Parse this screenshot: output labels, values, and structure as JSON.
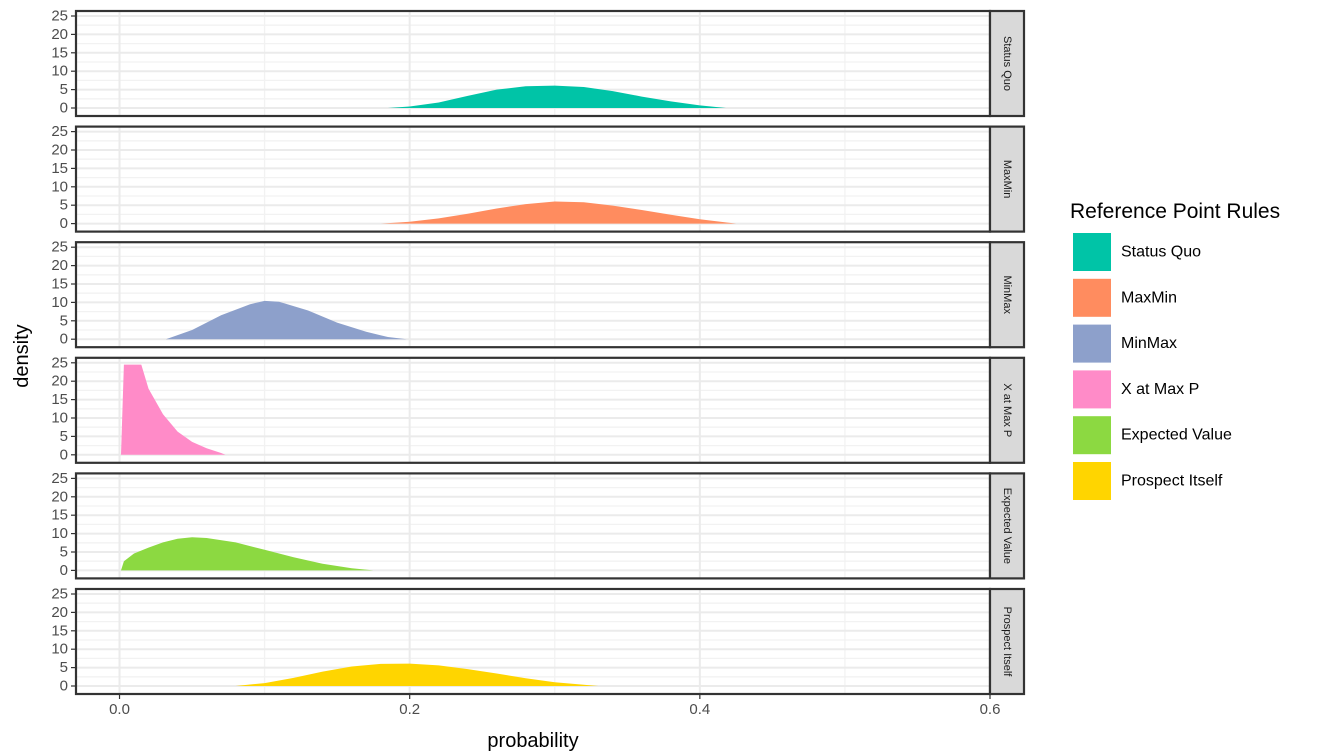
{
  "chart_data": {
    "type": "area",
    "xlabel": "probability",
    "ylabel": "density",
    "xlim": [
      -0.03,
      0.6
    ],
    "ylim": [
      0,
      25
    ],
    "x_ticks": [
      "0.0",
      "0.2",
      "0.4",
      "0.6"
    ],
    "x_tick_values": [
      0.0,
      0.2,
      0.4,
      0.6
    ],
    "y_ticks": [
      "0",
      "5",
      "10",
      "15",
      "20",
      "25"
    ],
    "y_tick_values": [
      0,
      5,
      10,
      15,
      20,
      25
    ],
    "grid": true,
    "legend": {
      "title": "Reference Point Rules",
      "position": "right"
    },
    "series": [
      {
        "name": "Status Quo",
        "color": "#00C4A7",
        "x": [
          0.185,
          0.2,
          0.22,
          0.24,
          0.26,
          0.28,
          0.3,
          0.32,
          0.34,
          0.36,
          0.38,
          0.4,
          0.418
        ],
        "y": [
          0,
          0.4,
          1.5,
          3.3,
          5.0,
          5.9,
          6.1,
          5.7,
          4.6,
          3.1,
          1.8,
          0.7,
          0
        ]
      },
      {
        "name": "MaxMin",
        "color": "#FF8C5F",
        "x": [
          0.18,
          0.2,
          0.22,
          0.24,
          0.26,
          0.28,
          0.3,
          0.32,
          0.34,
          0.36,
          0.38,
          0.4,
          0.425
        ],
        "y": [
          0,
          0.5,
          1.4,
          2.7,
          4.1,
          5.3,
          6.0,
          5.8,
          4.9,
          3.7,
          2.4,
          1.2,
          0
        ]
      },
      {
        "name": "MinMax",
        "color": "#8DA0CB",
        "x": [
          0.032,
          0.05,
          0.07,
          0.09,
          0.1,
          0.11,
          0.13,
          0.15,
          0.17,
          0.185,
          0.198
        ],
        "y": [
          0,
          2.5,
          6.5,
          9.5,
          10.4,
          10.2,
          7.8,
          4.5,
          2.0,
          0.6,
          0
        ]
      },
      {
        "name": "X at Max P",
        "color": "#FF8BC8",
        "x": [
          0.001,
          0.003,
          0.015,
          0.02,
          0.03,
          0.04,
          0.05,
          0.06,
          0.07,
          0.073
        ],
        "y": [
          0,
          24.5,
          24.5,
          18,
          11,
          6.3,
          3.5,
          1.8,
          0.5,
          0
        ]
      },
      {
        "name": "Expected Value",
        "color": "#8CD941",
        "x": [
          0.001,
          0.003,
          0.01,
          0.02,
          0.03,
          0.04,
          0.05,
          0.06,
          0.08,
          0.1,
          0.12,
          0.14,
          0.16,
          0.175
        ],
        "y": [
          0,
          2.5,
          4.6,
          6.2,
          7.6,
          8.6,
          9.0,
          8.8,
          7.6,
          5.6,
          3.6,
          1.8,
          0.6,
          0
        ]
      },
      {
        "name": "Prospect Itself",
        "color": "#FFD500",
        "x": [
          0.08,
          0.1,
          0.12,
          0.14,
          0.16,
          0.18,
          0.2,
          0.22,
          0.24,
          0.26,
          0.28,
          0.3,
          0.33
        ],
        "y": [
          0,
          0.8,
          2.2,
          3.9,
          5.3,
          6.0,
          6.1,
          5.6,
          4.6,
          3.4,
          2.1,
          1.0,
          0
        ]
      }
    ]
  }
}
